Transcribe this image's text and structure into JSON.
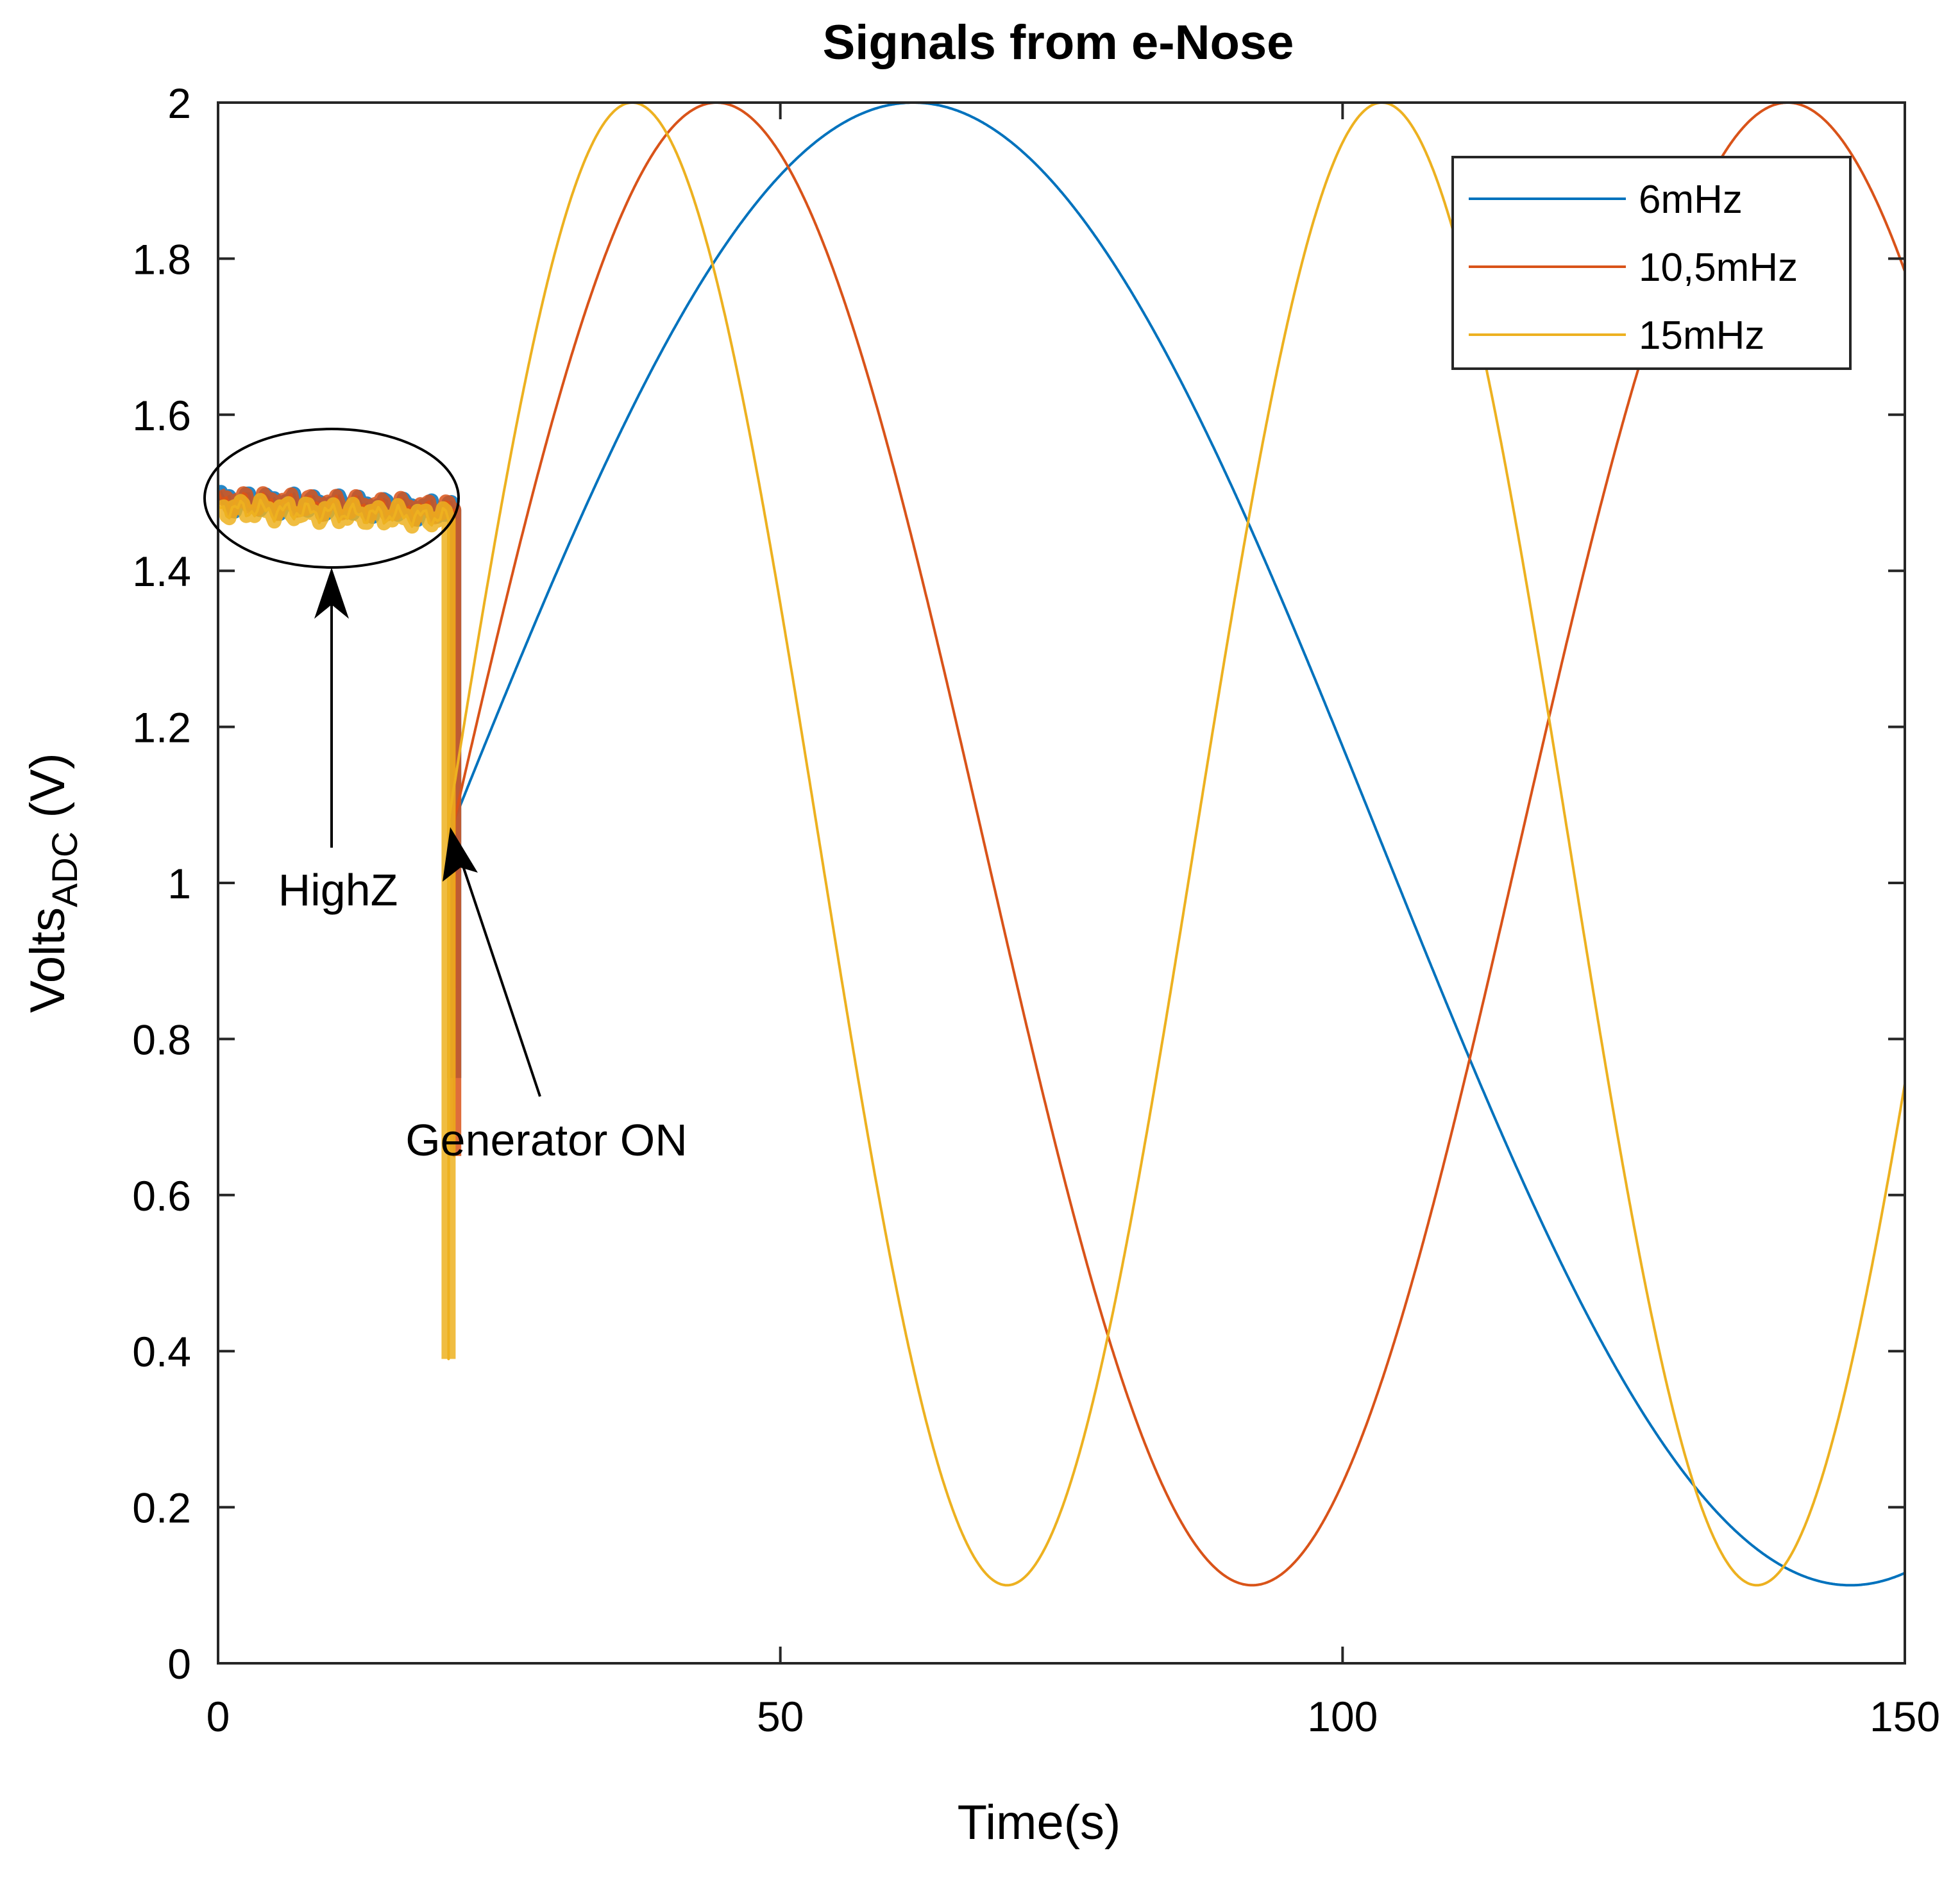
{
  "chart_data": {
    "type": "line",
    "title": "Signals from e-Nose",
    "xlabel": "Time(s)",
    "ylabel": "Volts",
    "ylabel_subscript": "ADC",
    "ylabel_unit": " (V)",
    "xlim": [
      0,
      150
    ],
    "ylim": [
      0,
      2
    ],
    "xticks": [
      0,
      50,
      100,
      150
    ],
    "xtick_labels": [
      "0",
      "50",
      "100",
      "150"
    ],
    "yticks": [
      0,
      0.2,
      0.4,
      0.6,
      0.8,
      1,
      1.2,
      1.4,
      1.6,
      1.8,
      2
    ],
    "ytick_labels": [
      "0",
      "0.2",
      "0.4",
      "0.6",
      "0.8",
      "1",
      "1.2",
      "1.4",
      "1.6",
      "1.8",
      "2"
    ],
    "grid": false,
    "legend_position": "top-right",
    "series": [
      {
        "name": "6mHz",
        "color": "#0072BD",
        "highz_level": 1.49,
        "t_on": 21,
        "drop_to": 0.75,
        "freq_hz": 0.006,
        "center": 1.05,
        "amplitude": 0.95,
        "start_value": 1.08
      },
      {
        "name": "10,5mHz",
        "color": "#D95319",
        "highz_level": 1.49,
        "t_on": 21,
        "drop_to": 0.65,
        "freq_hz": 0.0105,
        "center": 1.05,
        "amplitude": 0.95,
        "start_value": 1.08
      },
      {
        "name": "15mHz",
        "color": "#EDB120",
        "highz_level": 1.48,
        "t_on": 20.5,
        "drop_to": 0.39,
        "freq_hz": 0.015,
        "center": 1.05,
        "amplitude": 0.95,
        "start_value": 1.08
      }
    ],
    "annotations": [
      {
        "text": "HighZ",
        "target": [
          10.5,
          1.4
        ]
      },
      {
        "text": "Generator ON",
        "target": [
          20.8,
          1.07
        ]
      }
    ]
  }
}
